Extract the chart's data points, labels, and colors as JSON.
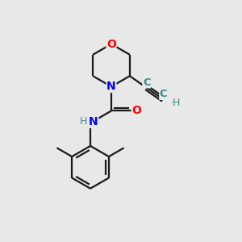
{
  "background_color": "#e8e8e8",
  "bond_color": "#1a1a1a",
  "O_color": "#ff0000",
  "N_color": "#0000ff",
  "C_color": "#3d8b8b",
  "bond_lw": 1.6,
  "figsize": [
    3.0,
    3.0
  ],
  "dpi": 100,
  "xlim": [
    0,
    10
  ],
  "ylim": [
    0,
    10
  ]
}
